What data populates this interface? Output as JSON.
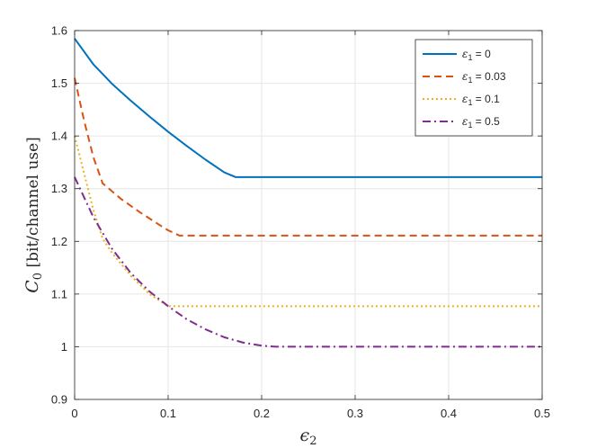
{
  "chart_data": {
    "type": "line",
    "xlabel": "ε₂",
    "ylabel": "C₀ [bit/channel use]",
    "xlim": [
      0,
      0.5
    ],
    "ylim": [
      0.9,
      1.6
    ],
    "xticks": [
      "0",
      "0.1",
      "0.2",
      "0.3",
      "0.4",
      "0.5"
    ],
    "yticks": [
      "0.9",
      "1",
      "1.1",
      "1.2",
      "1.3",
      "1.4",
      "1.5",
      "1.6"
    ],
    "grid": true,
    "legend_position": "top-right",
    "series": [
      {
        "name": "ε₁ = 0",
        "legend_base": "ε",
        "legend_sub": "1",
        "legend_rest": " = 0",
        "color": "#0072BD",
        "style": "solid",
        "x": [
          0,
          0.02,
          0.04,
          0.06,
          0.08,
          0.1,
          0.12,
          0.14,
          0.16,
          0.172,
          0.2,
          0.3,
          0.4,
          0.5
        ],
        "y": [
          1.585,
          1.536,
          1.499,
          1.467,
          1.437,
          1.408,
          1.381,
          1.355,
          1.331,
          1.322,
          1.322,
          1.322,
          1.322,
          1.322
        ]
      },
      {
        "name": "ε₁ = 0.03",
        "legend_base": "ε",
        "legend_sub": "1",
        "legend_rest": " = 0.03",
        "color": "#D95319",
        "style": "dashed",
        "x": [
          0,
          0.01,
          0.02,
          0.03,
          0.05,
          0.07,
          0.09,
          0.1,
          0.112,
          0.2,
          0.3,
          0.4,
          0.5
        ],
        "y": [
          1.51,
          1.43,
          1.36,
          1.31,
          1.28,
          1.255,
          1.232,
          1.221,
          1.211,
          1.211,
          1.211,
          1.211,
          1.211
        ]
      },
      {
        "name": "ε₁ = 0.1",
        "legend_base": "ε",
        "legend_sub": "1",
        "legend_rest": " = 0.1",
        "color": "#EDB120",
        "style": "dotted",
        "x": [
          0,
          0.01,
          0.02,
          0.03,
          0.04,
          0.06,
          0.08,
          0.1,
          0.2,
          0.3,
          0.4,
          0.5
        ],
        "y": [
          1.4,
          1.33,
          1.26,
          1.205,
          1.178,
          1.135,
          1.1,
          1.077,
          1.077,
          1.077,
          1.077,
          1.077
        ]
      },
      {
        "name": "ε₁ = 0.5",
        "legend_base": "ε",
        "legend_sub": "1",
        "legend_rest": " = 0.5",
        "color": "#7E2F8E",
        "style": "dashdot",
        "x": [
          0,
          0.02,
          0.04,
          0.06,
          0.08,
          0.1,
          0.12,
          0.14,
          0.16,
          0.18,
          0.2,
          0.215,
          0.3,
          0.4,
          0.5
        ],
        "y": [
          1.322,
          1.246,
          1.186,
          1.14,
          1.105,
          1.077,
          1.052,
          1.033,
          1.018,
          1.008,
          1.002,
          1.0,
          1.0,
          1.0,
          1.0
        ]
      }
    ]
  }
}
